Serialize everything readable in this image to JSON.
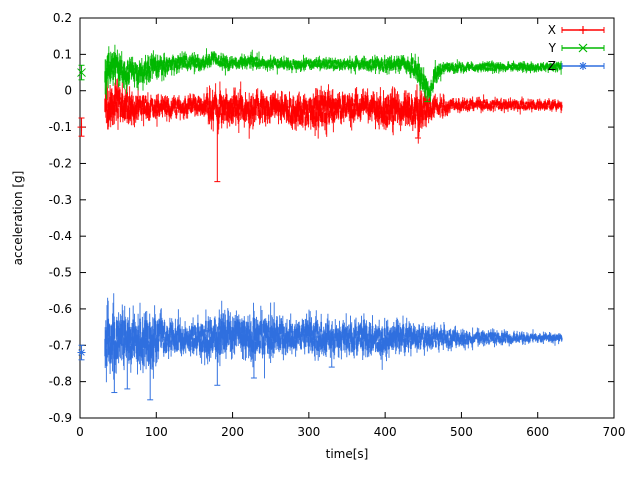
{
  "chart_data": {
    "type": "line",
    "subtype": "errorbars-timeseries",
    "title": "",
    "xlabel": "time[s]",
    "ylabel": "acceleration [g]",
    "xlim": [
      0,
      700
    ],
    "ylim": [
      -0.9,
      0.2
    ],
    "xticks": [
      0,
      100,
      200,
      300,
      400,
      500,
      600,
      700
    ],
    "xtick_labels": [
      "0",
      "100",
      "200",
      "300",
      "400",
      "500",
      "600",
      "700"
    ],
    "yticks": [
      0.2,
      0.1,
      0,
      -0.1,
      -0.2,
      -0.3,
      -0.4,
      -0.5,
      -0.6,
      -0.7,
      -0.8,
      -0.9
    ],
    "ytick_labels": [
      "0.2",
      "0.1",
      "0",
      "-0.1",
      "-0.2",
      "-0.3",
      "-0.4",
      "-0.5",
      "-0.6",
      "-0.7",
      "-0.8",
      "-0.9"
    ],
    "grid": false,
    "legend_position": "top-right",
    "legend": [
      {
        "name": "X",
        "color": "#ff0000",
        "marker": "plus"
      },
      {
        "name": "Y",
        "color": "#00b800",
        "marker": "cross"
      },
      {
        "name": "Z",
        "color": "#2f6fdf",
        "marker": "asterisk"
      }
    ],
    "sample_step": 0.8,
    "series": [
      {
        "name": "X",
        "color": "#ff0000",
        "marker": "plus",
        "t_start": 33,
        "t_end": 632,
        "isolated_points": [
          {
            "t": 2,
            "v": -0.1,
            "err": 0.025
          }
        ],
        "spikes": [
          {
            "t": 180,
            "v": -0.25
          },
          {
            "t": 443,
            "v": -0.13
          }
        ],
        "envelope": [
          {
            "t": 33,
            "m": -0.05,
            "s": 0.065
          },
          {
            "t": 45,
            "m": -0.03,
            "s": 0.05
          },
          {
            "t": 60,
            "m": -0.045,
            "s": 0.05
          },
          {
            "t": 80,
            "m": -0.04,
            "s": 0.035
          },
          {
            "t": 100,
            "m": -0.05,
            "s": 0.03
          },
          {
            "t": 130,
            "m": -0.045,
            "s": 0.025
          },
          {
            "t": 160,
            "m": -0.04,
            "s": 0.03
          },
          {
            "t": 180,
            "m": -0.05,
            "s": 0.05
          },
          {
            "t": 200,
            "m": -0.05,
            "s": 0.045
          },
          {
            "t": 230,
            "m": -0.045,
            "s": 0.04
          },
          {
            "t": 260,
            "m": -0.05,
            "s": 0.035
          },
          {
            "t": 290,
            "m": -0.06,
            "s": 0.045
          },
          {
            "t": 320,
            "m": -0.055,
            "s": 0.05
          },
          {
            "t": 350,
            "m": -0.045,
            "s": 0.04
          },
          {
            "t": 380,
            "m": -0.04,
            "s": 0.035
          },
          {
            "t": 405,
            "m": -0.06,
            "s": 0.05
          },
          {
            "t": 425,
            "m": -0.05,
            "s": 0.04
          },
          {
            "t": 448,
            "m": -0.055,
            "s": 0.055
          },
          {
            "t": 465,
            "m": -0.045,
            "s": 0.025
          },
          {
            "t": 490,
            "m": -0.04,
            "s": 0.018
          },
          {
            "t": 540,
            "m": -0.038,
            "s": 0.015
          },
          {
            "t": 590,
            "m": -0.04,
            "s": 0.014
          },
          {
            "t": 632,
            "m": -0.04,
            "s": 0.014
          }
        ]
      },
      {
        "name": "Y",
        "color": "#00b800",
        "marker": "cross",
        "t_start": 33,
        "t_end": 632,
        "isolated_points": [
          {
            "t": 2,
            "v": 0.05,
            "err": 0.02
          }
        ],
        "spikes": [
          {
            "t": 455,
            "v": -0.03
          }
        ],
        "envelope": [
          {
            "t": 33,
            "m": 0.06,
            "s": 0.055
          },
          {
            "t": 45,
            "m": 0.07,
            "s": 0.045
          },
          {
            "t": 60,
            "m": 0.05,
            "s": 0.04
          },
          {
            "t": 75,
            "m": 0.045,
            "s": 0.035
          },
          {
            "t": 95,
            "m": 0.06,
            "s": 0.035
          },
          {
            "t": 115,
            "m": 0.07,
            "s": 0.025
          },
          {
            "t": 135,
            "m": 0.08,
            "s": 0.02
          },
          {
            "t": 155,
            "m": 0.075,
            "s": 0.02
          },
          {
            "t": 175,
            "m": 0.09,
            "s": 0.02
          },
          {
            "t": 195,
            "m": 0.075,
            "s": 0.018
          },
          {
            "t": 225,
            "m": 0.08,
            "s": 0.018
          },
          {
            "t": 255,
            "m": 0.075,
            "s": 0.015
          },
          {
            "t": 285,
            "m": 0.07,
            "s": 0.015
          },
          {
            "t": 315,
            "m": 0.075,
            "s": 0.015
          },
          {
            "t": 345,
            "m": 0.07,
            "s": 0.015
          },
          {
            "t": 375,
            "m": 0.075,
            "s": 0.018
          },
          {
            "t": 400,
            "m": 0.07,
            "s": 0.02
          },
          {
            "t": 420,
            "m": 0.075,
            "s": 0.02
          },
          {
            "t": 440,
            "m": 0.065,
            "s": 0.03
          },
          {
            "t": 452,
            "m": 0.015,
            "s": 0.035
          },
          {
            "t": 458,
            "m": -0.01,
            "s": 0.02
          },
          {
            "t": 465,
            "m": 0.04,
            "s": 0.03
          },
          {
            "t": 475,
            "m": 0.063,
            "s": 0.014
          },
          {
            "t": 520,
            "m": 0.065,
            "s": 0.012
          },
          {
            "t": 570,
            "m": 0.065,
            "s": 0.012
          },
          {
            "t": 632,
            "m": 0.065,
            "s": 0.012
          }
        ]
      },
      {
        "name": "Z",
        "color": "#2f6fdf",
        "marker": "asterisk",
        "t_start": 33,
        "t_end": 632,
        "isolated_points": [
          {
            "t": 2,
            "v": -0.72,
            "err": 0.02
          }
        ],
        "spikes": [
          {
            "t": 45,
            "v": -0.83
          },
          {
            "t": 62,
            "v": -0.82
          },
          {
            "t": 92,
            "v": -0.85
          },
          {
            "t": 180,
            "v": -0.81
          },
          {
            "t": 228,
            "v": -0.79
          },
          {
            "t": 330,
            "v": -0.76
          }
        ],
        "envelope": [
          {
            "t": 33,
            "m": -0.69,
            "s": 0.085
          },
          {
            "t": 50,
            "m": -0.69,
            "s": 0.08
          },
          {
            "t": 70,
            "m": -0.685,
            "s": 0.065
          },
          {
            "t": 90,
            "m": -0.69,
            "s": 0.085
          },
          {
            "t": 110,
            "m": -0.68,
            "s": 0.05
          },
          {
            "t": 140,
            "m": -0.68,
            "s": 0.04
          },
          {
            "t": 165,
            "m": -0.68,
            "s": 0.055
          },
          {
            "t": 185,
            "m": -0.675,
            "s": 0.06
          },
          {
            "t": 210,
            "m": -0.675,
            "s": 0.055
          },
          {
            "t": 235,
            "m": -0.675,
            "s": 0.06
          },
          {
            "t": 260,
            "m": -0.675,
            "s": 0.05
          },
          {
            "t": 285,
            "m": -0.68,
            "s": 0.04
          },
          {
            "t": 310,
            "m": -0.675,
            "s": 0.05
          },
          {
            "t": 340,
            "m": -0.68,
            "s": 0.04
          },
          {
            "t": 370,
            "m": -0.68,
            "s": 0.045
          },
          {
            "t": 395,
            "m": -0.685,
            "s": 0.04
          },
          {
            "t": 420,
            "m": -0.675,
            "s": 0.045
          },
          {
            "t": 450,
            "m": -0.68,
            "s": 0.032
          },
          {
            "t": 480,
            "m": -0.68,
            "s": 0.026
          },
          {
            "t": 520,
            "m": -0.68,
            "s": 0.02
          },
          {
            "t": 560,
            "m": -0.68,
            "s": 0.016
          },
          {
            "t": 600,
            "m": -0.68,
            "s": 0.012
          },
          {
            "t": 632,
            "m": -0.68,
            "s": 0.01
          }
        ]
      }
    ]
  }
}
